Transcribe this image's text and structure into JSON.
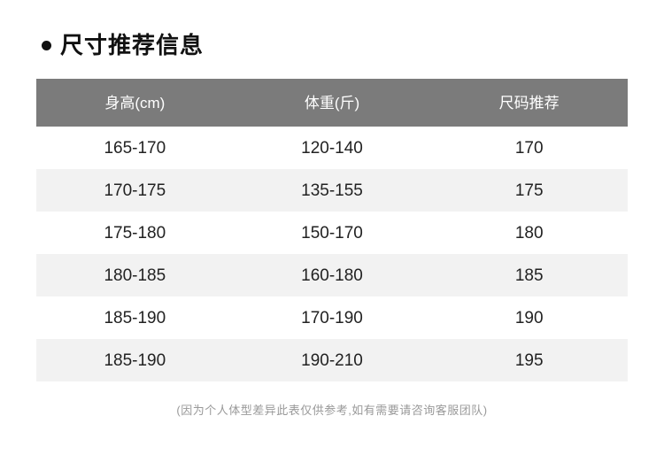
{
  "page": {
    "title": "尺寸推荐信息",
    "footer_note": "(因为个人体型差异此表仅供参考,如有需要请咨询客服团队)"
  },
  "table": {
    "headers": [
      "身高(cm)",
      "体重(斤)",
      "尺码推荐"
    ],
    "rows": [
      [
        "165-170",
        "120-140",
        "170"
      ],
      [
        "170-175",
        "135-155",
        "175"
      ],
      [
        "175-180",
        "150-170",
        "180"
      ],
      [
        "180-185",
        "160-180",
        "185"
      ],
      [
        "185-190",
        "170-190",
        "190"
      ],
      [
        "185-190",
        "190-210",
        "195"
      ]
    ]
  },
  "colors": {
    "header_bg": "#7b7b7b",
    "header_text": "#ffffff",
    "row_alt_bg": "#f2f2f2",
    "body_text": "#222222",
    "note_text": "#999999",
    "title_text": "#111111"
  }
}
